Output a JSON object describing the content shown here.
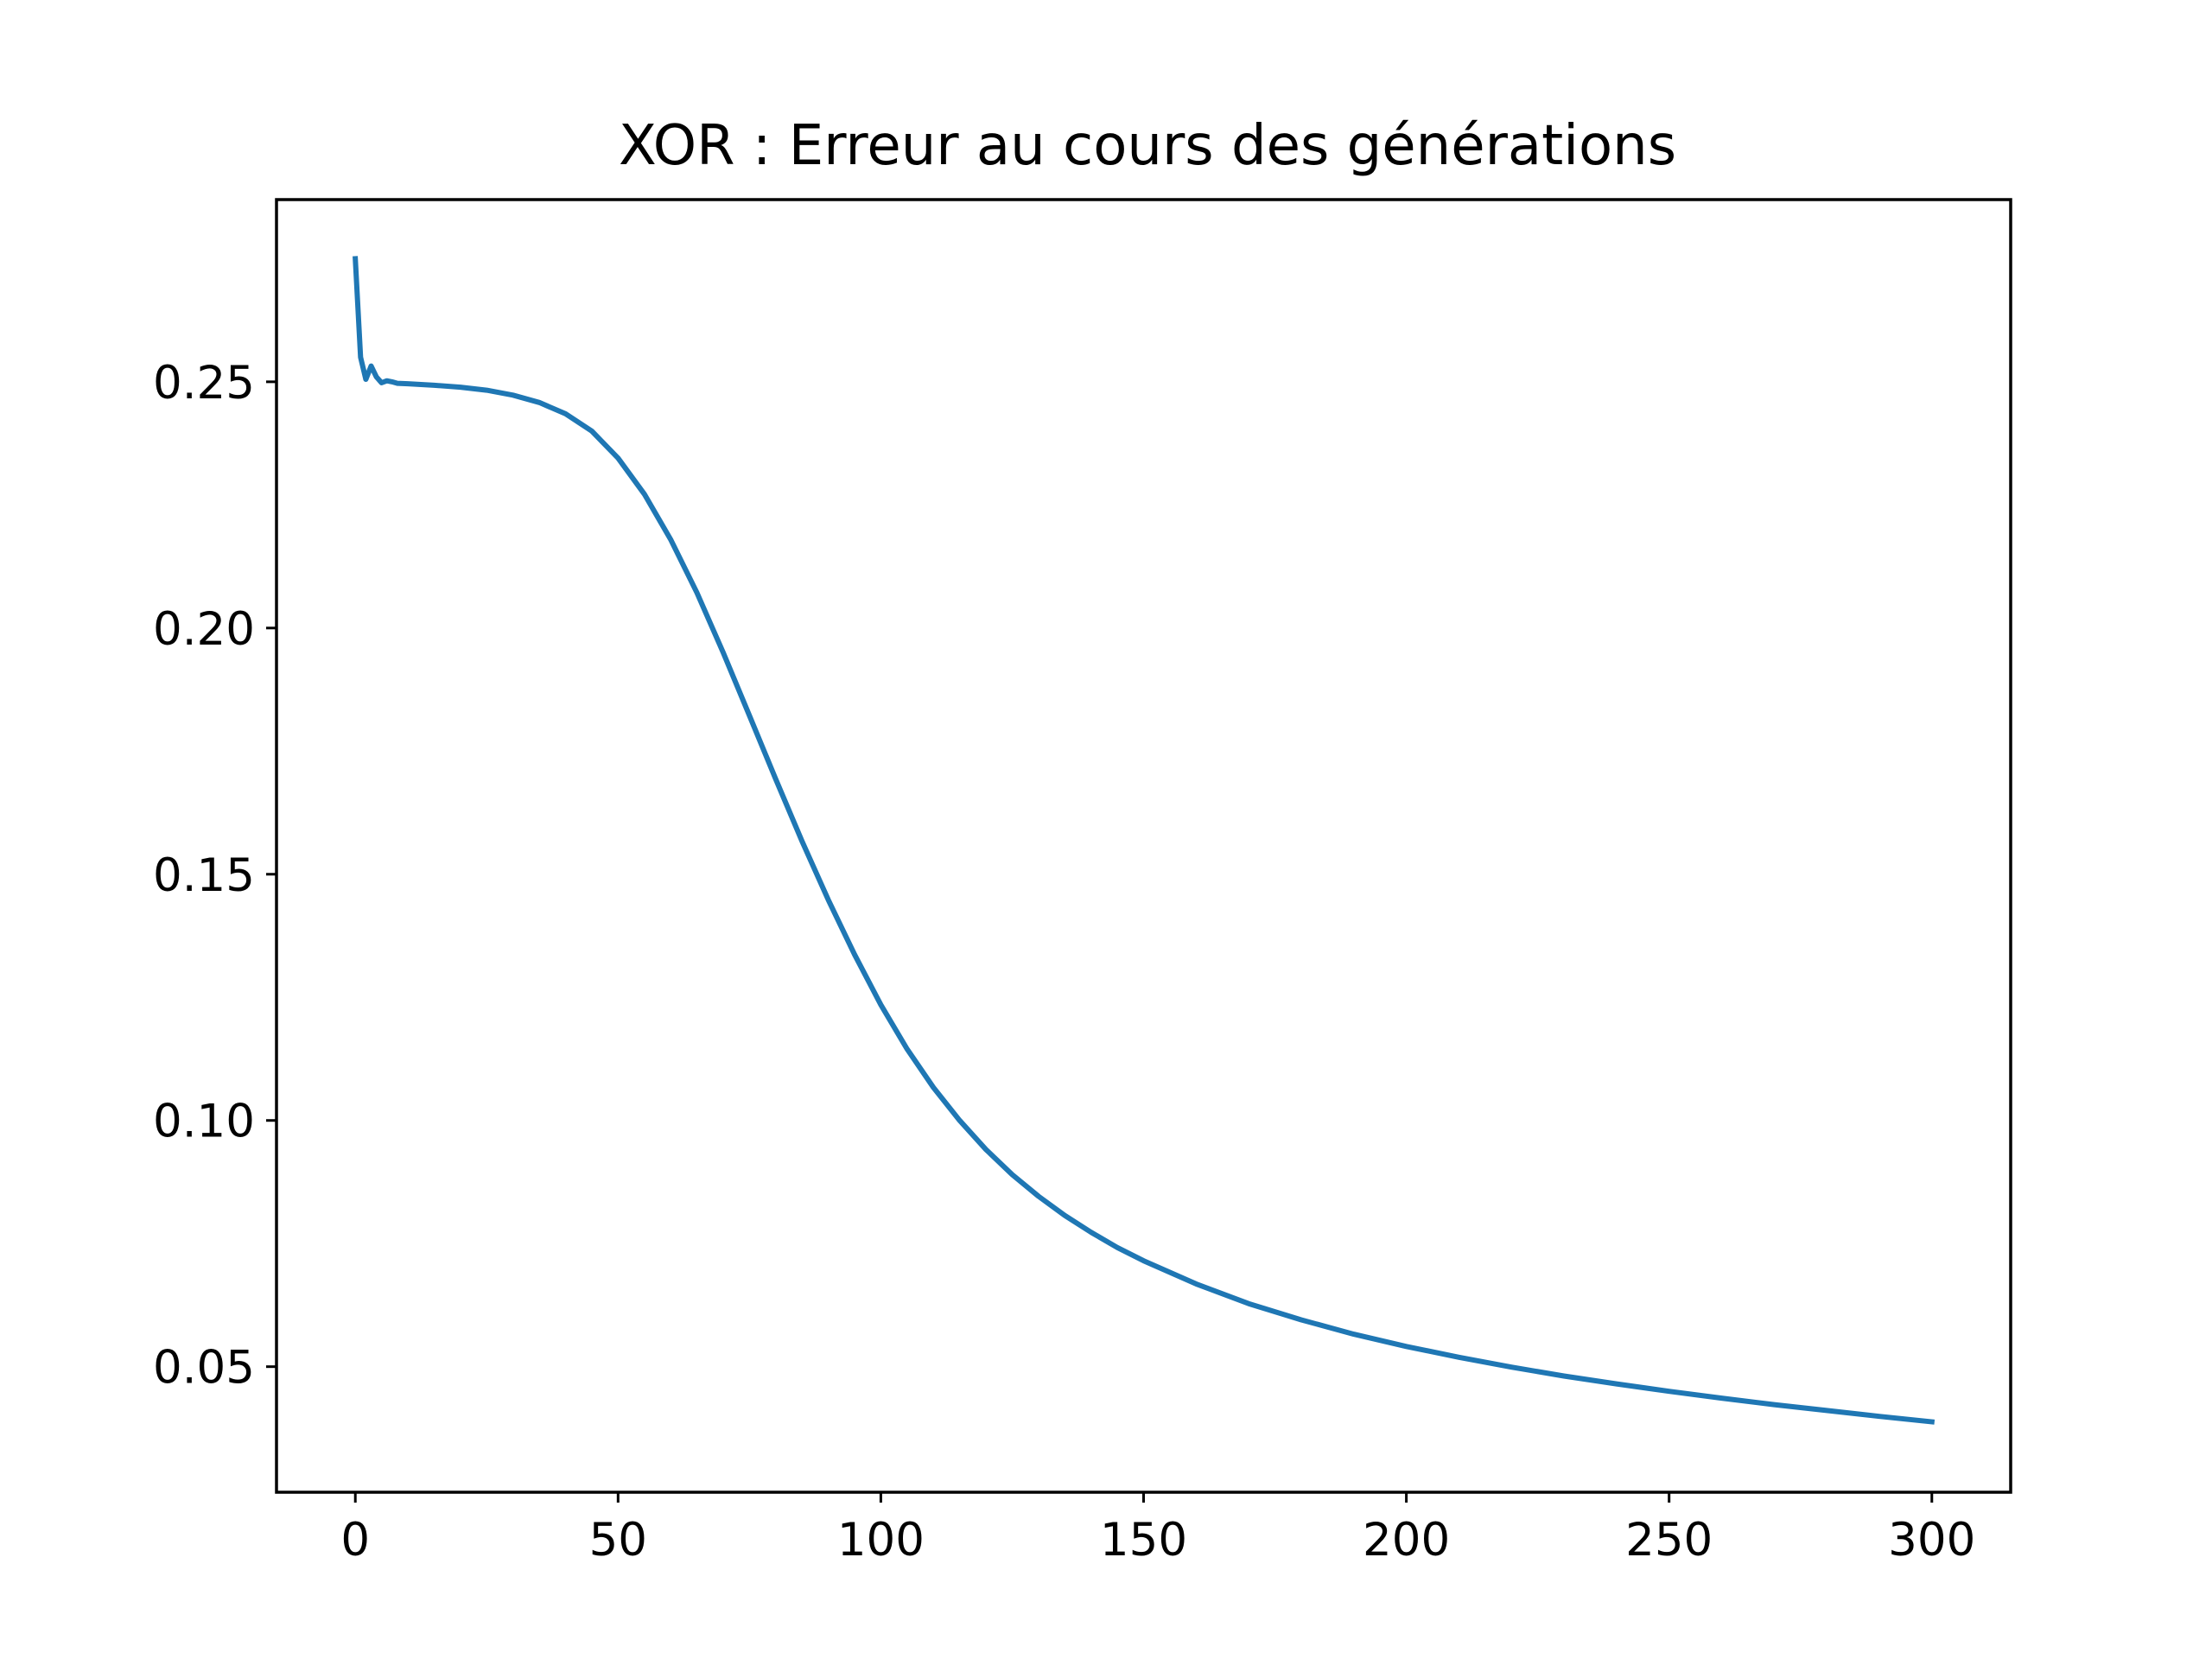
{
  "chart_data": {
    "type": "line",
    "title": "XOR : Erreur au cours des générations",
    "xlabel": "",
    "ylabel": "",
    "xlim": [
      -15,
      315
    ],
    "ylim": [
      0.0245,
      0.287
    ],
    "grid": false,
    "x_ticks": [
      0,
      50,
      100,
      150,
      200,
      250,
      300
    ],
    "x_tick_labels": [
      "0",
      "50",
      "100",
      "150",
      "200",
      "250",
      "300"
    ],
    "y_ticks": [
      0.05,
      0.1,
      0.15,
      0.2,
      0.25
    ],
    "y_tick_labels": [
      "0.05",
      "0.10",
      "0.15",
      "0.20",
      "0.25"
    ],
    "series": [
      {
        "color": "#1f77b4",
        "x": [
          0,
          1,
          2,
          3,
          4,
          5,
          6,
          7,
          8,
          10,
          15,
          20,
          25,
          30,
          35,
          40,
          45,
          50,
          55,
          60,
          65,
          70,
          75,
          80,
          85,
          90,
          95,
          100,
          105,
          110,
          115,
          120,
          125,
          130,
          135,
          140,
          145,
          150,
          160,
          170,
          180,
          190,
          200,
          210,
          220,
          230,
          240,
          250,
          260,
          270,
          280,
          290,
          300
        ],
        "y": [
          0.275,
          0.255,
          0.2505,
          0.2532,
          0.251,
          0.2498,
          0.2502,
          0.25,
          0.2497,
          0.2496,
          0.2493,
          0.2489,
          0.2483,
          0.2473,
          0.2458,
          0.2435,
          0.24,
          0.2345,
          0.2272,
          0.218,
          0.2072,
          0.195,
          0.1822,
          0.1693,
          0.1567,
          0.1448,
          0.1337,
          0.1235,
          0.1145,
          0.1067,
          0.1,
          0.0941,
          0.089,
          0.0846,
          0.0807,
          0.0773,
          0.0742,
          0.0715,
          0.0668,
          0.0628,
          0.0595,
          0.0566,
          0.0541,
          0.0519,
          0.0499,
          0.0481,
          0.0465,
          0.045,
          0.0436,
          0.0423,
          0.0411,
          0.0399,
          0.0388
        ]
      }
    ]
  }
}
